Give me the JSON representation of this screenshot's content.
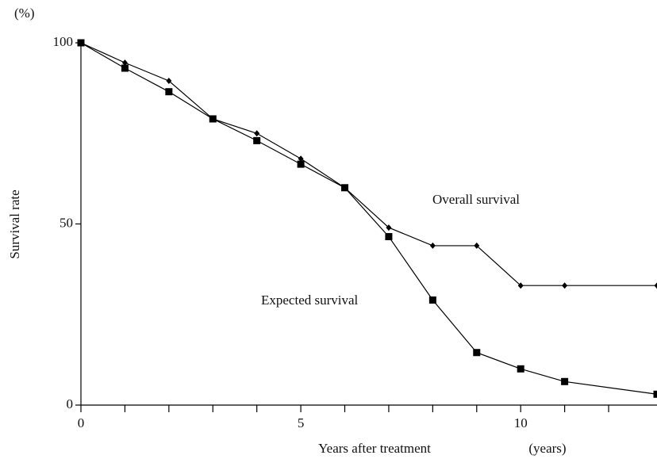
{
  "chart_data": {
    "type": "line",
    "y_unit": "(%)",
    "ylabel": "Survival rate",
    "xlabel": "Years after treatment",
    "x_unit": "(years)",
    "annotations": [
      "Overall survival",
      "Expected survival"
    ],
    "xlim": [
      0,
      13.1
    ],
    "ylim": [
      0,
      100
    ],
    "xticks": [
      0,
      5,
      10
    ],
    "minor_xticks": [
      1,
      2,
      3,
      4,
      6,
      7,
      8,
      9,
      11,
      12
    ],
    "yticks": [
      0,
      50,
      100
    ],
    "series": [
      {
        "name": "Overall survival",
        "marker": "diamond",
        "color": "#000000",
        "x": [
          0,
          1,
          2,
          3,
          4,
          5,
          6,
          7,
          8,
          9,
          10,
          11,
          13.1
        ],
        "values": [
          100,
          94.5,
          89.5,
          79,
          75,
          68,
          60,
          49,
          44,
          44,
          33,
          33,
          33
        ]
      },
      {
        "name": "Expected survival",
        "marker": "square",
        "color": "#000000",
        "x": [
          0,
          1,
          2,
          3,
          4,
          5,
          6,
          7,
          8,
          9,
          10,
          11,
          13.1
        ],
        "values": [
          100,
          93,
          86.5,
          79,
          73,
          66.5,
          60,
          46.5,
          29,
          14.5,
          10,
          6.5,
          3
        ]
      }
    ]
  }
}
